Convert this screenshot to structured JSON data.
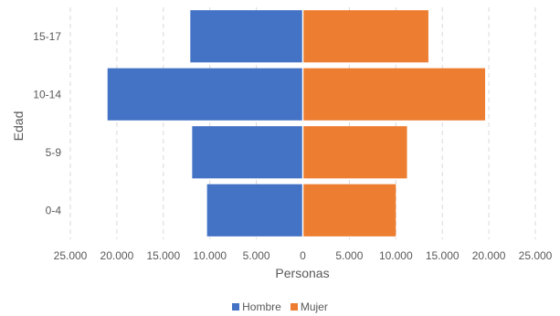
{
  "chart_data": {
    "type": "bar",
    "orientation": "horizontal",
    "layout": "population-pyramid",
    "categories": [
      "0-4",
      "5-9",
      "10-14",
      "15-17"
    ],
    "series": [
      {
        "name": "Hombre",
        "values": [
          10300,
          11900,
          21000,
          12100
        ],
        "color": "#4472C4"
      },
      {
        "name": "Mujer",
        "values": [
          10000,
          11200,
          19600,
          13500
        ],
        "color": "#ED7D31"
      }
    ],
    "xlabel": "Personas",
    "ylabel": "Edad",
    "xlim": [
      -25000,
      25000
    ],
    "xticks": [
      -25000,
      -20000,
      -15000,
      -10000,
      -5000,
      0,
      5000,
      10000,
      15000,
      20000,
      25000
    ],
    "xtick_labels": [
      "25.000",
      "20.000",
      "15.000",
      "10.000",
      "5.000",
      "0",
      "5.000",
      "10.000",
      "15.000",
      "20.000",
      "25.000"
    ],
    "grid": "vertical dashed",
    "legend_position": "bottom"
  }
}
